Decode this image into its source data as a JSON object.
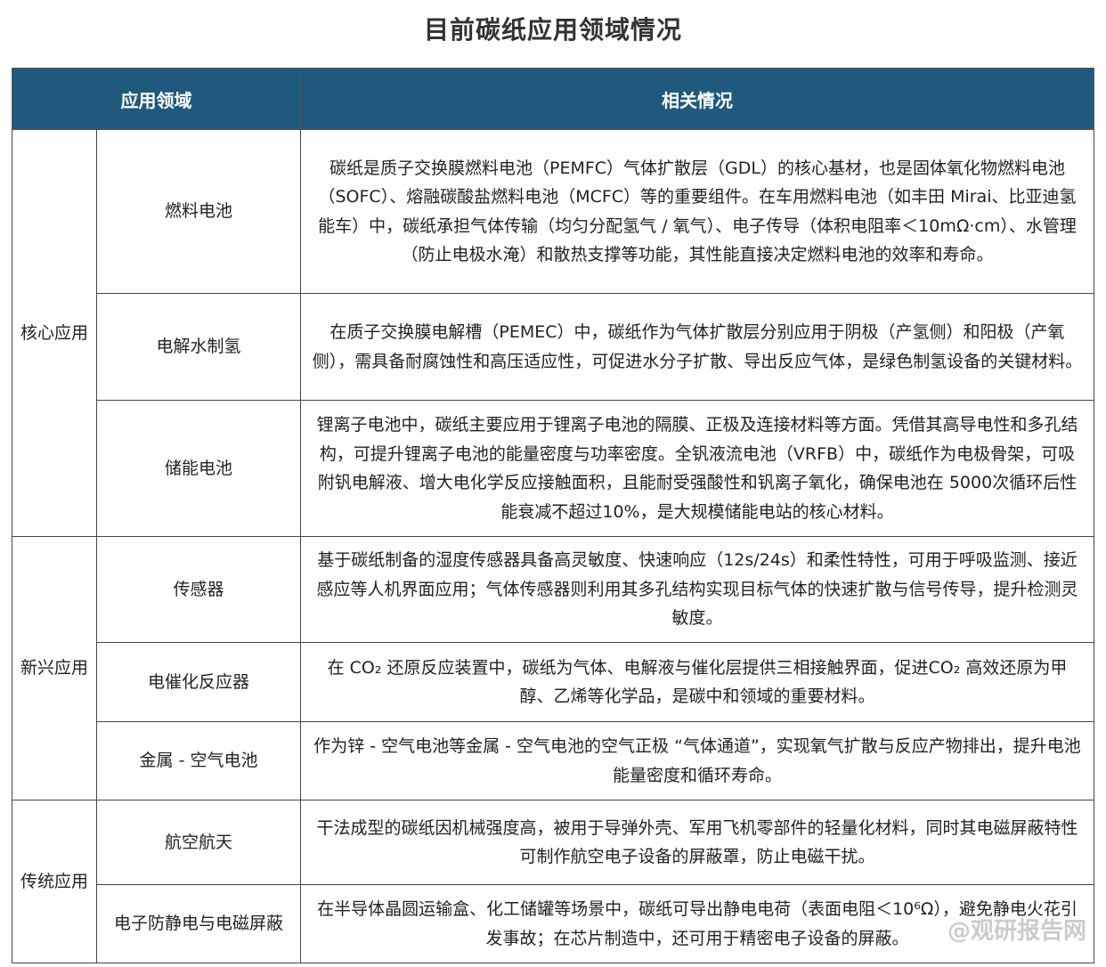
{
  "title": "目前碳纸应用领域情况",
  "headers": [
    "应用领域",
    "相关情况"
  ],
  "groups": [
    {
      "name": "核心应用",
      "rows": [
        {
          "field": "燃料电池",
          "desc": "碳纸是质子交换膜燃料电池（PEMFC）气体扩散层（GDL）的核心基材，也是固体氧化物燃料电池（SOFC）、熔融碳酸盐燃料电池（MCFC）等的重要组件。在车用燃料电池（如丰田 Mirai、比亚迪氢能车）中，碳纸承担气体传输（均匀分配氢气 / 氧气）、电子传导（体积电阻率＜10mΩ·cm）、水管理（防止电极水淹）和散热支撑等功能，其性能直接决定燃料电池的效率和寿命。"
        },
        {
          "field": "电解水制氢",
          "desc": "在质子交换膜电解槽（PEMEC）中，碳纸作为气体扩散层分别应用于阴极（产氢侧）和阳极（产氧侧），需具备耐腐蚀性和高压适应性，可促进水分子扩散、导出反应气体，是绿色制氢设备的关键材料。"
        },
        {
          "field": "储能电池",
          "desc": "锂离子电池中，碳纸主要应用于锂离子电池的隔膜、正极及连接材料等方面。凭借其高导电性和多孔结构，可提升锂离子电池的能量密度与功率密度。全钒液流电池（VRFB）中，碳纸作为电极骨架，可吸附钒电解液、增大电化学反应接触面积，且能耐受强酸性和钒离子氧化，确保电池在 5000次循环后性能衰减不超过10%，是大规模储能电站的核心材料。"
        }
      ]
    },
    {
      "name": "新兴应用",
      "rows": [
        {
          "field": "传感器",
          "desc": "基于碳纸制备的湿度传感器具备高灵敏度、快速响应（12s/24s）和柔性特性，可用于呼吸监测、接近感应等人机界面应用；气体传感器则利用其多孔结构实现目标气体的快速扩散与信号传导，提升检测灵敏度。"
        },
        {
          "field": "电催化反应器",
          "desc": "在 CO₂ 还原反应装置中，碳纸为气体、电解液与催化层提供三相接触界面，促进CO₂ 高效还原为甲醇、乙烯等化学品，是碳中和领域的重要材料。"
        },
        {
          "field": "金属 - 空气电池",
          "desc": "作为锌 - 空气电池等金属 - 空气电池的空气正极 “气体通道”，实现氧气扩散与反应产物排出，提升电池能量密度和循环寿命。"
        }
      ]
    },
    {
      "name": "传统应用",
      "rows": [
        {
          "field": "航空航天",
          "desc": "干法成型的碳纸因机械强度高，被用于导弹外壳、军用飞机零部件的轻量化材料，同时其电磁屏蔽特性可制作航空电子设备的屏蔽罩，防止电磁干扰。"
        },
        {
          "field": "电子防静电与电磁屏蔽",
          "desc": "在半导体晶圆运输盒、化工储罐等场景中，碳纸可导出静电电荷（表面电阻＜10⁶Ω），避免静电火花引发事故；在芯片制造中，还可用于精密电子设备的屏蔽。"
        }
      ]
    }
  ],
  "watermark": "@观研报告网",
  "colors": {
    "header_bg": "#1f5a7e",
    "header_text": "#ffffff"
  }
}
